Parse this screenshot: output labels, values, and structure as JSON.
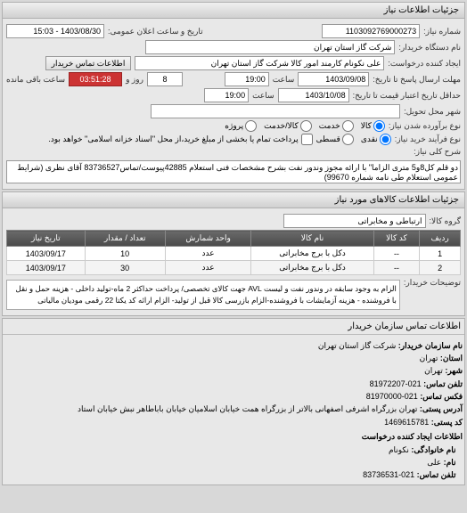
{
  "header": {
    "title": "جزئیات اطلاعات نیاز"
  },
  "row1": {
    "need_no_label": "شماره نیاز:",
    "need_no": "1103092769000273",
    "announce_label": "تاریخ و ساعت اعلان عمومی:",
    "announce_val": "1403/08/30 - 15:03"
  },
  "row2": {
    "buyer_org_label": "نام دستگاه خریدار:",
    "buyer_org": "شرکت گاز استان تهران"
  },
  "row3": {
    "creator_label": "ایجاد کننده درخواست:",
    "creator": "علی نکونام کارمند امور کالا شرکت گاز استان تهران",
    "contact_btn": "اطلاعات تماس خریدار"
  },
  "row4": {
    "reply_deadline_label": "مهلت ارسال پاسخ تا تاریخ:",
    "reply_date": "1403/09/08",
    "time_lbl": "ساعت",
    "reply_time": "19:00",
    "days_val": "8",
    "days_lbl": "روز و",
    "timer": "03:51:28",
    "remain_lbl": "ساعت باقی مانده"
  },
  "row5": {
    "price_valid_label": "حداقل تاریخ اعتبار قیمت تا تاریخ:",
    "price_date": "1403/10/08",
    "time_lbl": "ساعت",
    "price_time": "19:00"
  },
  "row6": {
    "delivery_city_label": "شهر محل تحویل:"
  },
  "row7": {
    "need_type_label": "نوع برآورده شدن نیاز:",
    "opt_goods": "کالا",
    "opt_service": "خدمت",
    "opt_both": "کالا/خدمت",
    "opt_project": "پروژه"
  },
  "row8": {
    "purchase_proc_label": "نوع فرآیند خرید نیاز:",
    "opt_cash": "نقدی",
    "opt_installment": "قسطی",
    "pay_note": "پرداخت تمام یا بخشی از مبلغ خرید،از محل \"اسناد خزانه اسلامی\" خواهد بود."
  },
  "row9": {
    "desc_label": "شرح کلی نیاز:",
    "desc_text": "دو قلم کل8و5 متری الزاما\" با ارائه مجوز وندور نفت بشرح مشخصات فنی استعلام 42885پیوست/تماس83736527 آقای نظری (شرایط عمومی استعلام طی نامه شماره 99670)"
  },
  "items_header": {
    "title": "جزئیات اطلاعات کالاهای مورد نیاز"
  },
  "row_group": {
    "group_label": "گروه کالا:",
    "group_val": "ارتباطی و مخابراتی"
  },
  "table": {
    "cols": [
      "ردیف",
      "کد کالا",
      "نام کالا",
      "واحد شمارش",
      "تعداد / مقدار",
      "تاریخ نیاز"
    ],
    "rows": [
      [
        "1",
        "--",
        "دکل با برج مخابراتی",
        "عدد",
        "10",
        "1403/09/17"
      ],
      [
        "2",
        "--",
        "دکل با برج مخابراتی",
        "عدد",
        "30",
        "1403/09/17"
      ]
    ]
  },
  "row_notes": {
    "notes_label": "توضیحات خریدار:",
    "notes_text": "الزام به وجود سابقه در وندور نفت و لیست AVL جهت کالای تخصصی/ پرداخت حداکثر 2 ماه-تولید داخلی - هزینه حمل و نقل با فروشنده - هزینه آزمایشات با فروشنده-الزام بازرسی کالا قبل از تولید- الزام ارائه کد یکتا 22 رقمی مودیان مالیاتی"
  },
  "contact_header": {
    "title": "اطلاعات تماس سازمان خریدار"
  },
  "contact": {
    "org_label": "نام سازمان خریدار:",
    "org_val": "شرکت گاز استان تهران",
    "state_label": "استان:",
    "state_val": "تهران",
    "city_label": "شهر:",
    "city_val": "تهران",
    "phone_label": "تلفن تماس:",
    "phone_val": "021-81972207",
    "fax_label": "فکس تماس:",
    "fax_val": "021-81970000",
    "addr_label": "آدرس پستی:",
    "addr_val": "تهران بزرگراه اشرفی اصفهانی بالاتر از بزرگراه همت خیابان اسلامیان خیابان باباطاهر نبش خیابان استاد",
    "postal_label": "کد پستی:",
    "postal_val": "1469615781",
    "creator_info_label": "اطلاعات ایجاد کننده درخواست",
    "family_label": "نام خانوادگی:",
    "family_val": "نکونام",
    "name_label": "نام:",
    "name_val": "علی",
    "cphone_label": "تلفن تماس:",
    "cphone_val": "021-83736531"
  }
}
